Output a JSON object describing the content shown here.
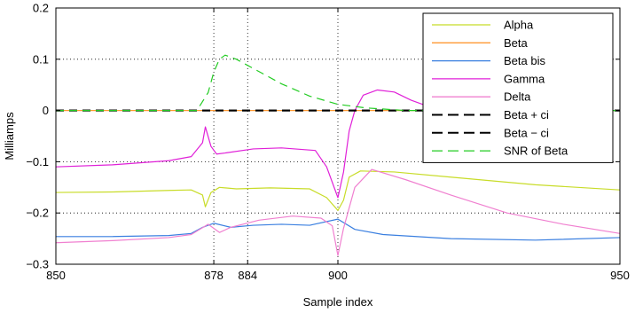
{
  "chart_data": {
    "type": "line",
    "xlabel": "Sample index",
    "ylabel": "Milliamps",
    "xlim": [
      850,
      950
    ],
    "ylim": [
      -0.3,
      0.2
    ],
    "xticks": [
      850,
      878,
      884,
      900,
      950
    ],
    "xtick_labels": [
      "850",
      "878",
      "884",
      "900",
      "950"
    ],
    "yticks": [
      -0.3,
      -0.2,
      -0.1,
      0,
      0.1,
      0.2
    ],
    "ytick_labels": [
      "−0.3",
      "−0.2",
      "−0.1",
      "0",
      "0.1",
      "0.2"
    ],
    "grid": true,
    "legend_position": "top-right",
    "series": [
      {
        "name": "Alpha",
        "color": "#c8dc28",
        "dash": "solid",
        "points": [
          [
            850,
            -0.16
          ],
          [
            860,
            -0.159
          ],
          [
            870,
            -0.156
          ],
          [
            874,
            -0.155
          ],
          [
            876,
            -0.165
          ],
          [
            876.5,
            -0.188
          ],
          [
            877.5,
            -0.16
          ],
          [
            879,
            -0.15
          ],
          [
            882,
            -0.153
          ],
          [
            888,
            -0.151
          ],
          [
            895,
            -0.153
          ],
          [
            898,
            -0.17
          ],
          [
            900,
            -0.195
          ],
          [
            901,
            -0.175
          ],
          [
            902,
            -0.13
          ],
          [
            904,
            -0.118
          ],
          [
            910,
            -0.12
          ],
          [
            920,
            -0.13
          ],
          [
            935,
            -0.145
          ],
          [
            950,
            -0.155
          ]
        ]
      },
      {
        "name": "Beta",
        "color": "#ff9933",
        "dash": "solid",
        "points": [
          [
            850,
            0.0
          ],
          [
            950,
            0.0
          ]
        ]
      },
      {
        "name": "Beta bis",
        "color": "#3a7fe0",
        "dash": "solid",
        "points": [
          [
            850,
            -0.246
          ],
          [
            860,
            -0.246
          ],
          [
            870,
            -0.244
          ],
          [
            874,
            -0.24
          ],
          [
            876,
            -0.228
          ],
          [
            878,
            -0.22
          ],
          [
            881,
            -0.228
          ],
          [
            885,
            -0.224
          ],
          [
            890,
            -0.222
          ],
          [
            895,
            -0.224
          ],
          [
            900,
            -0.212
          ],
          [
            903,
            -0.232
          ],
          [
            908,
            -0.242
          ],
          [
            920,
            -0.25
          ],
          [
            935,
            -0.253
          ],
          [
            950,
            -0.248
          ]
        ]
      },
      {
        "name": "Gamma",
        "color": "#e020d8",
        "dash": "solid",
        "points": [
          [
            850,
            -0.11
          ],
          [
            860,
            -0.106
          ],
          [
            870,
            -0.098
          ],
          [
            874,
            -0.09
          ],
          [
            876,
            -0.063
          ],
          [
            876.5,
            -0.032
          ],
          [
            877.5,
            -0.07
          ],
          [
            878.5,
            -0.085
          ],
          [
            880,
            -0.083
          ],
          [
            885,
            -0.075
          ],
          [
            890,
            -0.073
          ],
          [
            896,
            -0.078
          ],
          [
            898,
            -0.11
          ],
          [
            900,
            -0.17
          ],
          [
            901,
            -0.12
          ],
          [
            902,
            -0.04
          ],
          [
            903,
            0.0
          ],
          [
            904.5,
            0.03
          ],
          [
            907,
            0.04
          ],
          [
            910,
            0.036
          ],
          [
            913,
            0.02
          ],
          [
            916,
            0.008
          ],
          [
            920,
            0.001
          ],
          [
            922,
            0.0
          ]
        ]
      },
      {
        "name": "Delta",
        "color": "#f080d0",
        "dash": "solid",
        "points": [
          [
            850,
            -0.258
          ],
          [
            860,
            -0.254
          ],
          [
            870,
            -0.248
          ],
          [
            874,
            -0.242
          ],
          [
            877,
            -0.222
          ],
          [
            879,
            -0.238
          ],
          [
            881,
            -0.228
          ],
          [
            886,
            -0.214
          ],
          [
            892,
            -0.206
          ],
          [
            897,
            -0.21
          ],
          [
            899,
            -0.225
          ],
          [
            900,
            -0.283
          ],
          [
            901,
            -0.23
          ],
          [
            903,
            -0.15
          ],
          [
            906,
            -0.115
          ],
          [
            912,
            -0.135
          ],
          [
            920,
            -0.165
          ],
          [
            930,
            -0.2
          ],
          [
            940,
            -0.222
          ],
          [
            950,
            -0.24
          ]
        ]
      },
      {
        "name": "Beta + ci",
        "color": "#000000",
        "dash": "dashed",
        "points": [
          [
            850,
            0.0
          ],
          [
            950,
            0.0
          ]
        ]
      },
      {
        "name": "Beta − ci",
        "color": "#000000",
        "dash": "dashed",
        "points": [
          [
            850,
            0.0
          ],
          [
            950,
            0.0
          ]
        ]
      },
      {
        "name": "SNR of Beta",
        "color": "#22cc22",
        "dash": "dashed",
        "points": [
          [
            850,
            0.0
          ],
          [
            875,
            0.0
          ],
          [
            877,
            0.035
          ],
          [
            878,
            0.075
          ],
          [
            879,
            0.1
          ],
          [
            880,
            0.108
          ],
          [
            882,
            0.1
          ],
          [
            885,
            0.082
          ],
          [
            890,
            0.052
          ],
          [
            895,
            0.028
          ],
          [
            900,
            0.012
          ],
          [
            905,
            0.005
          ],
          [
            912,
            0.0
          ],
          [
            950,
            0.0
          ]
        ]
      }
    ]
  }
}
